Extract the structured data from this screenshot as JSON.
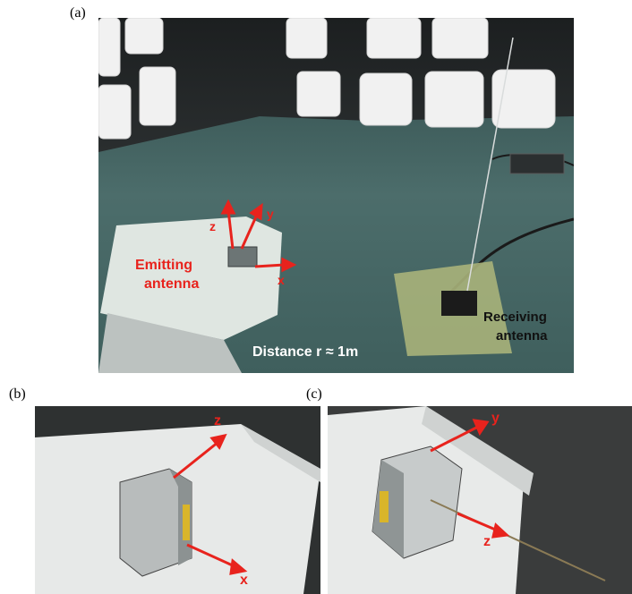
{
  "panels": {
    "a": {
      "label": "(a)",
      "annotations": {
        "axis_z": "z",
        "axis_y": "y",
        "axis_x": "x",
        "emitting_line1": "Emitting",
        "emitting_line2": "antenna",
        "receiving_line1": "Receiving",
        "receiving_line2": "antenna",
        "distance": "Distance r ≈ 1m"
      }
    },
    "b": {
      "label": "(b)",
      "annotations": {
        "axis_z": "z",
        "axis_x": "x"
      }
    },
    "c": {
      "label": "(c)",
      "annotations": {
        "axis_y": "y",
        "axis_z": "z"
      }
    }
  },
  "colors": {
    "arrow": "#e8231d",
    "chamber_floor": "#4f6f6d",
    "absorber": "#f2f2f2",
    "foam": "#e6e8e6"
  }
}
